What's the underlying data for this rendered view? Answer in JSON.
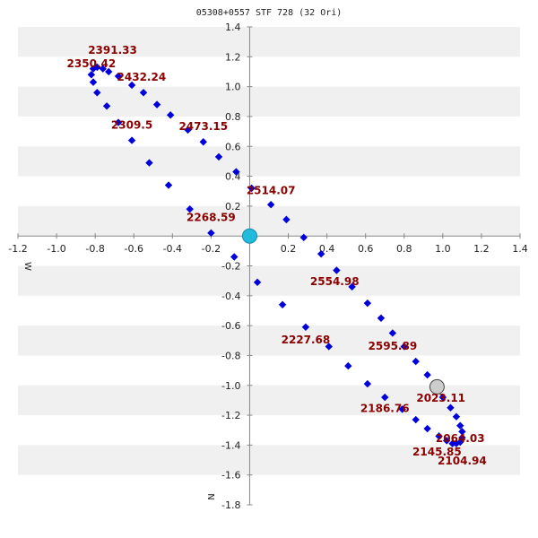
{
  "chart_data": {
    "type": "scatter",
    "title": "05308+0557 STF 728 (32 Ori)",
    "x_direction_label": "W",
    "y_direction_label": "N",
    "xlim": [
      -1.2,
      1.4
    ],
    "ylim": [
      -1.8,
      1.4
    ],
    "x_ticks": [
      "-1.2",
      "-1.0",
      "-0.8",
      "-0.6",
      "-0.4",
      "-0.2",
      "0.2",
      "0.4",
      "0.6",
      "0.8",
      "1.0",
      "1.2",
      "1.4"
    ],
    "y_ticks": [
      "1.4",
      "1.2",
      "1.0",
      "0.8",
      "0.6",
      "0.4",
      "0.2",
      "-0.2",
      "-0.4",
      "-0.6",
      "-0.8",
      "-1.0",
      "-1.2",
      "-1.4",
      "-1.6",
      "-1.8"
    ],
    "grid": "alternating horizontal bands",
    "colors": {
      "points": "#0000dd",
      "labels": "#8b0000",
      "band": "#f0f0f0",
      "primary": "#22bbdd",
      "periastron": "#cccccc"
    },
    "primary": {
      "x": 0.0,
      "y": 0.0
    },
    "marked_point": {
      "x": 0.97,
      "y": -1.01
    },
    "points": [
      {
        "x": 0.01,
        "y": 0.32
      },
      {
        "x": 0.11,
        "y": 0.21
      },
      {
        "x": 0.19,
        "y": 0.11
      },
      {
        "x": 0.28,
        "y": -0.01
      },
      {
        "x": 0.37,
        "y": -0.12
      },
      {
        "x": 0.45,
        "y": -0.23
      },
      {
        "x": 0.53,
        "y": -0.34
      },
      {
        "x": 0.61,
        "y": -0.45
      },
      {
        "x": 0.68,
        "y": -0.55
      },
      {
        "x": 0.74,
        "y": -0.65
      },
      {
        "x": 0.8,
        "y": -0.74
      },
      {
        "x": 0.86,
        "y": -0.84
      },
      {
        "x": 0.92,
        "y": -0.93
      },
      {
        "x": 1.0,
        "y": -1.08
      },
      {
        "x": 1.04,
        "y": -1.15
      },
      {
        "x": 1.07,
        "y": -1.21
      },
      {
        "x": 1.09,
        "y": -1.27
      },
      {
        "x": 1.1,
        "y": -1.31
      },
      {
        "x": 1.1,
        "y": -1.35
      },
      {
        "x": 1.09,
        "y": -1.38
      },
      {
        "x": 1.07,
        "y": -1.39
      },
      {
        "x": 1.05,
        "y": -1.39
      },
      {
        "x": 1.02,
        "y": -1.37
      },
      {
        "x": 0.98,
        "y": -1.34
      },
      {
        "x": 0.92,
        "y": -1.29
      },
      {
        "x": 0.86,
        "y": -1.23
      },
      {
        "x": 0.79,
        "y": -1.16
      },
      {
        "x": 0.7,
        "y": -1.08
      },
      {
        "x": 0.61,
        "y": -0.99
      },
      {
        "x": 0.51,
        "y": -0.87
      },
      {
        "x": 0.41,
        "y": -0.74
      },
      {
        "x": 0.29,
        "y": -0.61
      },
      {
        "x": 0.17,
        "y": -0.46
      },
      {
        "x": 0.04,
        "y": -0.31
      },
      {
        "x": -0.08,
        "y": -0.14
      },
      {
        "x": -0.2,
        "y": 0.02
      },
      {
        "x": -0.31,
        "y": 0.18
      },
      {
        "x": -0.42,
        "y": 0.34
      },
      {
        "x": -0.52,
        "y": 0.49
      },
      {
        "x": -0.61,
        "y": 0.64
      },
      {
        "x": -0.68,
        "y": 0.76
      },
      {
        "x": -0.74,
        "y": 0.87
      },
      {
        "x": -0.79,
        "y": 0.96
      },
      {
        "x": -0.81,
        "y": 1.03
      },
      {
        "x": -0.82,
        "y": 1.08
      },
      {
        "x": -0.81,
        "y": 1.12
      },
      {
        "x": -0.79,
        "y": 1.13
      },
      {
        "x": -0.76,
        "y": 1.12
      },
      {
        "x": -0.73,
        "y": 1.1
      },
      {
        "x": -0.68,
        "y": 1.07
      },
      {
        "x": -0.61,
        "y": 1.01
      },
      {
        "x": -0.55,
        "y": 0.96
      },
      {
        "x": -0.48,
        "y": 0.88
      },
      {
        "x": -0.41,
        "y": 0.81
      },
      {
        "x": -0.32,
        "y": 0.71
      },
      {
        "x": -0.24,
        "y": 0.63
      },
      {
        "x": -0.16,
        "y": 0.53
      },
      {
        "x": -0.07,
        "y": 0.43
      }
    ],
    "annotations": [
      {
        "text": "2391.33",
        "x": -0.71,
        "y": 1.22
      },
      {
        "text": "2350.42",
        "x": -0.82,
        "y": 1.13
      },
      {
        "text": "2432.24",
        "x": -0.56,
        "y": 1.04
      },
      {
        "text": "2309.5",
        "x": -0.61,
        "y": 0.72
      },
      {
        "text": "2473.15",
        "x": -0.24,
        "y": 0.71
      },
      {
        "text": "2514.07",
        "x": 0.11,
        "y": 0.28
      },
      {
        "text": "2268.59",
        "x": -0.2,
        "y": 0.1
      },
      {
        "text": "2554.98",
        "x": 0.44,
        "y": -0.33
      },
      {
        "text": "2227.68",
        "x": 0.29,
        "y": -0.72
      },
      {
        "text": "2595.89",
        "x": 0.74,
        "y": -0.76
      },
      {
        "text": "2023.11",
        "x": 0.99,
        "y": -1.11
      },
      {
        "text": "2186.76",
        "x": 0.7,
        "y": -1.18
      },
      {
        "text": "2064.03",
        "x": 1.09,
        "y": -1.38
      },
      {
        "text": "2145.85",
        "x": 0.97,
        "y": -1.47
      },
      {
        "text": "2104.94",
        "x": 1.1,
        "y": -1.53
      }
    ]
  }
}
